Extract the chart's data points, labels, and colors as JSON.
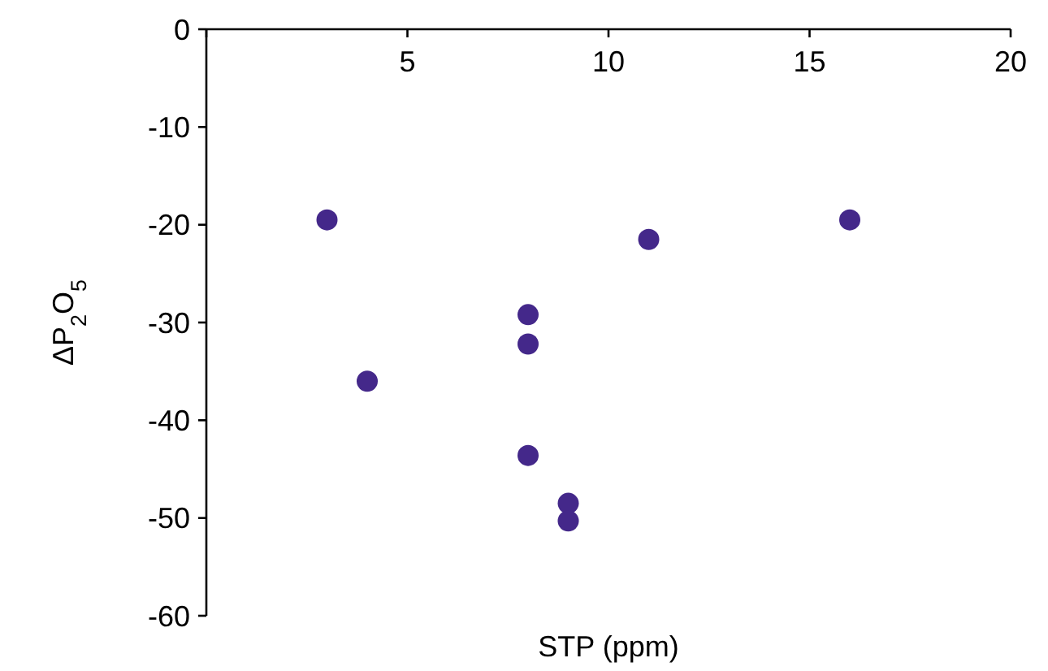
{
  "chart_data": {
    "type": "scatter",
    "xlabel": "STP (ppm)",
    "ylabel": "ΔP$_{2}$O$_{5}$",
    "x": [
      3,
      4,
      8,
      8,
      8,
      9,
      9,
      11,
      16
    ],
    "series": [
      {
        "color": "#44288a",
        "values": [
          -19.5,
          -36,
          -29.2,
          -32.2,
          -43.6,
          -48.5,
          -50.3,
          -21.5,
          -19.5
        ]
      }
    ],
    "xlim": [
      0,
      20
    ],
    "xticks": [
      {
        "value": 0,
        "label": null
      },
      5,
      10,
      15,
      20
    ],
    "ylim": [
      -60,
      0
    ],
    "yticks": [
      0,
      -10,
      -20,
      -30,
      -40,
      -50,
      -60
    ],
    "marker": "circle"
  }
}
